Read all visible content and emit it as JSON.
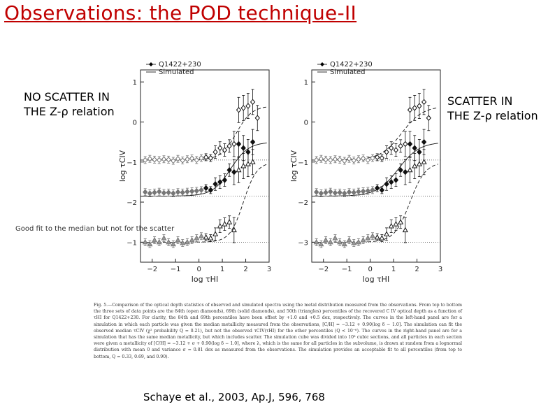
{
  "slide": {
    "title": "Observations: the POD technique-II",
    "left_label": [
      "NO SCATTER IN",
      "THE Z-ρ relation"
    ],
    "right_label": [
      "SCATTER IN",
      "THE Z-ρ relation"
    ],
    "note": "Good fit to the median but not for the scatter",
    "citation": "Schaye et al., 2003, Ap.J, 596, 768"
  },
  "figure": {
    "legend": [
      "Q1422+230",
      "Simulated"
    ],
    "xlabel": "log τHI",
    "ylabel": "log τCIV",
    "x_ticks": [
      "−2",
      "−1",
      "0",
      "1",
      "2",
      "3"
    ],
    "left_y_ticks": [
      "1",
      "0",
      "−1",
      "−2",
      "−1"
    ],
    "right_y_ticks": [
      "1",
      "0",
      "−1",
      "−2",
      "−3"
    ],
    "caption": "Fig. 5.—Comparison of the optical depth statistics of observed and simulated spectra using the metal distribution measured from the observations. From top to bottom the three sets of data points are the 84th (open diamonds), 69th (solid diamonds), and 50th (triangles) percentiles of the recovered C IV optical depth as a function of τHI for Q1422+230. For clarity, the 84th and 69th percentiles have been offset by +1.0 and +0.5 dex, respectively. The curves in the left-hand panel are for a simulation in which each particle was given the median metallicity measured from the observations, [C/H] = −3.12 + 0.90(log δ − 1.0]. The simulation can fit the observed median τCIV (χ² probability Q = 0.21), but not the observed τCIV(τHI) for the other percentiles (Q < 10⁻⁶). The curves in the right-hand panel are for a simulation that has the same median metallicity, but which includes scatter. The simulation cube was divided into 10³ cubic sections, and all particles in each section were given a metallicity of [C/H] = −3.12 + σ + 0.90(log δ − 1.0], where λ, which is the same for all particles in the subvolume, is drawn at random from a lognormal distribution with mean 0 and variance σ = 0.81 dex as measured from the observations. The simulation provides an acceptable fit to all percentiles (from top to bottom, Q = 0.33, 0.69, and 0.90)."
  },
  "chart_data": [
    {
      "type": "scatter",
      "panel": "left",
      "xlabel": "log τHI",
      "ylabel": "log τCIV",
      "xlim": [
        -2.5,
        3.0
      ],
      "series": [
        {
          "name": "84th (open diamonds)",
          "x": [
            -2.3,
            -2.1,
            -1.9,
            -1.7,
            -1.5,
            -1.3,
            -1.1,
            -0.9,
            -0.7,
            -0.5,
            -0.3,
            -0.1,
            0.1,
            0.3,
            0.5,
            0.7,
            0.9,
            1.1,
            1.3,
            1.5,
            1.7,
            1.9,
            2.1,
            2.3,
            2.5
          ],
          "y": [
            -0.95,
            -0.92,
            -0.94,
            -0.95,
            -0.93,
            -0.94,
            -0.97,
            -0.92,
            -0.96,
            -0.93,
            -0.91,
            -0.95,
            -0.9,
            -0.88,
            -0.9,
            -0.75,
            -0.65,
            -0.7,
            -0.6,
            -0.55,
            0.3,
            0.35,
            0.4,
            0.5,
            0.1
          ]
        },
        {
          "name": "69th (solid diamonds)",
          "x": [
            -2.3,
            -2.1,
            -1.9,
            -1.7,
            -1.5,
            -1.3,
            -1.1,
            -0.9,
            -0.7,
            -0.5,
            -0.3,
            -0.1,
            0.1,
            0.3,
            0.5,
            0.7,
            0.9,
            1.1,
            1.3,
            1.5,
            1.7,
            1.9,
            2.1,
            2.3
          ],
          "y": [
            -1.75,
            -1.78,
            -1.76,
            -1.74,
            -1.77,
            -1.76,
            -1.78,
            -1.75,
            -1.76,
            -1.74,
            -1.73,
            -1.72,
            -1.7,
            -1.65,
            -1.7,
            -1.55,
            -1.5,
            -1.45,
            -1.2,
            -1.25,
            -0.55,
            -0.65,
            -0.75,
            -0.5
          ]
        },
        {
          "name": "50th (triangles)",
          "x": [
            -2.3,
            -2.1,
            -1.9,
            -1.7,
            -1.5,
            -1.3,
            -1.1,
            -0.9,
            -0.7,
            -0.5,
            -0.3,
            -0.1,
            0.1,
            0.3,
            0.5,
            0.7,
            0.9,
            1.1,
            1.3,
            1.5,
            1.7,
            1.9,
            2.1,
            2.3
          ],
          "y": [
            -3.0,
            -3.05,
            -2.95,
            -3.0,
            -2.9,
            -3.0,
            -3.05,
            -2.95,
            -3.02,
            -3.0,
            -2.95,
            -2.9,
            -2.85,
            -2.88,
            -2.9,
            -2.8,
            -2.6,
            -2.55,
            -2.5,
            -2.7,
            -1.2,
            -1.1,
            -1.05,
            -1.0
          ]
        }
      ]
    },
    {
      "type": "scatter",
      "panel": "right",
      "xlabel": "log τHI",
      "ylabel": "log τCIV",
      "xlim": [
        -2.5,
        3.0
      ],
      "series": [
        {
          "name": "84th (open diamonds)",
          "x": [
            -2.3,
            -2.1,
            -1.9,
            -1.7,
            -1.5,
            -1.3,
            -1.1,
            -0.9,
            -0.7,
            -0.5,
            -0.3,
            -0.1,
            0.1,
            0.3,
            0.5,
            0.7,
            0.9,
            1.1,
            1.3,
            1.5,
            1.7,
            1.9,
            2.1,
            2.3,
            2.5
          ],
          "y": [
            -0.95,
            -0.92,
            -0.94,
            -0.95,
            -0.93,
            -0.94,
            -0.97,
            -0.92,
            -0.96,
            -0.93,
            -0.91,
            -0.95,
            -0.9,
            -0.88,
            -0.9,
            -0.75,
            -0.65,
            -0.7,
            -0.6,
            -0.55,
            0.3,
            0.35,
            0.4,
            0.5,
            0.1
          ]
        },
        {
          "name": "69th (solid diamonds)",
          "x": [
            -2.3,
            -2.1,
            -1.9,
            -1.7,
            -1.5,
            -1.3,
            -1.1,
            -0.9,
            -0.7,
            -0.5,
            -0.3,
            -0.1,
            0.1,
            0.3,
            0.5,
            0.7,
            0.9,
            1.1,
            1.3,
            1.5,
            1.7,
            1.9,
            2.1,
            2.3
          ],
          "y": [
            -1.75,
            -1.78,
            -1.76,
            -1.74,
            -1.77,
            -1.76,
            -1.78,
            -1.75,
            -1.76,
            -1.74,
            -1.73,
            -1.72,
            -1.7,
            -1.65,
            -1.7,
            -1.55,
            -1.5,
            -1.45,
            -1.2,
            -1.25,
            -0.55,
            -0.65,
            -0.75,
            -0.5
          ]
        },
        {
          "name": "50th (triangles)",
          "x": [
            -2.3,
            -2.1,
            -1.9,
            -1.7,
            -1.5,
            -1.3,
            -1.1,
            -0.9,
            -0.7,
            -0.5,
            -0.3,
            -0.1,
            0.1,
            0.3,
            0.5,
            0.7,
            0.9,
            1.1,
            1.3,
            1.5,
            1.7,
            1.9,
            2.1,
            2.3
          ],
          "y": [
            -3.0,
            -3.05,
            -2.95,
            -3.0,
            -2.9,
            -3.0,
            -3.05,
            -2.95,
            -3.02,
            -3.0,
            -2.95,
            -2.9,
            -2.85,
            -2.88,
            -2.9,
            -2.8,
            -2.6,
            -2.55,
            -2.5,
            -2.7,
            -1.2,
            -1.1,
            -1.05,
            -1.0
          ]
        }
      ]
    }
  ]
}
